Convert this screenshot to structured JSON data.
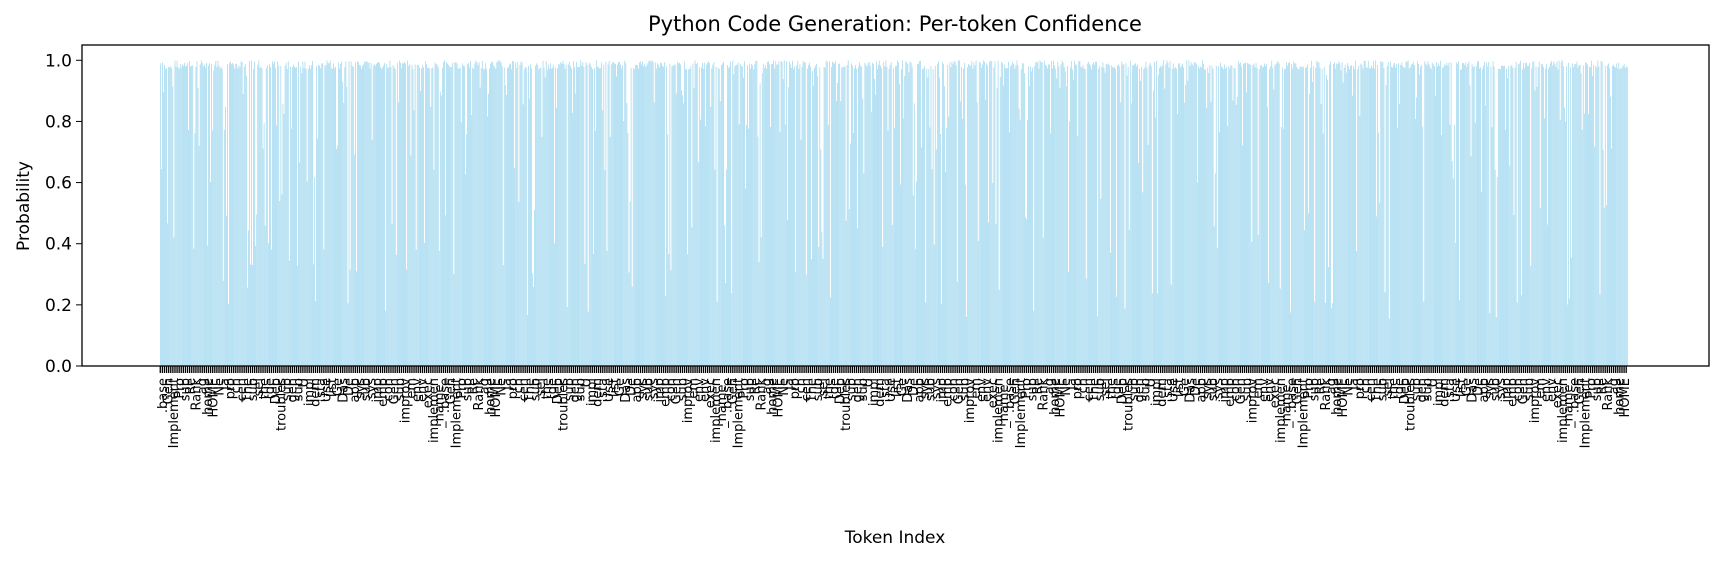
{
  "chart_data": {
    "type": "bar",
    "title": "Python Code Generation: Per-token Confidence",
    "xlabel": "Token Index",
    "ylabel": "Probability",
    "ylim": [
      0,
      1.05
    ],
    "yticks": [
      "0.0",
      "0.2",
      "0.4",
      "0.6",
      "0.8",
      "1.0"
    ],
    "ytick_values": [
      0.0,
      0.2,
      0.4,
      0.6,
      0.8,
      1.0
    ],
    "bar_color": "#87ceeb",
    "grid": false,
    "legend": "none",
    "token_count": 1400,
    "token_labels_sample": [
      ".base",
      "Gen",
      "Implement",
      "Pro",
      "sub",
      "Re",
      "Rank",
      "ag",
      "home",
      "HOME",
      "Ne",
      "Ja",
      "pro",
      "ch",
      "cen",
      "The",
      "sub",
      "sel",
      "the",
      "(de",
      "Dep",
      "troubles",
      "sub",
      "gen",
      "sub",
      "U",
      "impl",
      "dem",
      ".sta",
      "Use",
      "list",
      "Ge",
      "Das",
      "De",
      "app",
      "sys",
      "sub",
      "sys",
      "imp",
      "emp",
      "con",
      "Gen",
      "sub",
      "improv",
      "em",
      "env",
      "env",
      "exec",
      "implemen",
      "_name_"
    ]
  }
}
